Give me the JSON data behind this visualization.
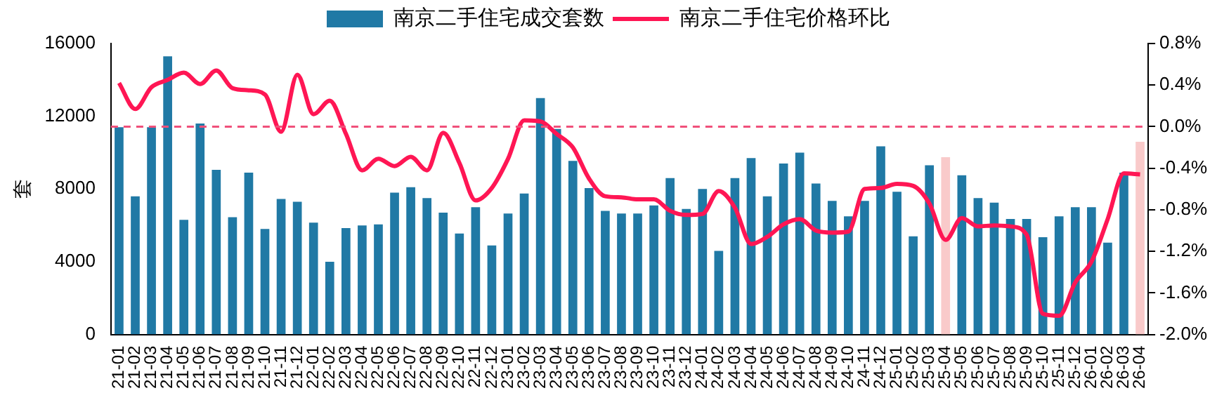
{
  "chart_data": {
    "type": "bar",
    "ylabel": "套",
    "categories": [
      "21-01",
      "21-02",
      "21-03",
      "21-04",
      "21-05",
      "21-06",
      "21-07",
      "21-08",
      "21-09",
      "21-10",
      "21-11",
      "21-12",
      "22-01",
      "22-02",
      "22-03",
      "22-04",
      "22-05",
      "22-06",
      "22-07",
      "22-08",
      "22-09",
      "22-10",
      "22-11",
      "22-12",
      "23-01",
      "23-02",
      "23-03",
      "23-04",
      "23-05",
      "23-06",
      "23-07",
      "23-08",
      "23-09",
      "23-10",
      "23-11",
      "23-12",
      "24-01",
      "24-02",
      "24-03",
      "24-04",
      "24-05",
      "24-06",
      "24-07",
      "24-08",
      "24-09",
      "24-10",
      "24-11",
      "24-12",
      "25-01",
      "25-02",
      "25-03",
      "25-04",
      "25-05",
      "25-06",
      "25-07",
      "25-08",
      "25-09",
      "25-10",
      "25-11",
      "25-12",
      "26-01",
      "26-02",
      "26-03",
      "26-04"
    ],
    "series": [
      {
        "name": "南京二手住宅成交套数",
        "color": "#2079a5",
        "colors": [
          "#2079a5",
          "#2079a5",
          "#2079a5",
          "#2079a5",
          "#2079a5",
          "#2079a5",
          "#2079a5",
          "#2079a5",
          "#2079a5",
          "#2079a5",
          "#2079a5",
          "#2079a5",
          "#2079a5",
          "#2079a5",
          "#2079a5",
          "#2079a5",
          "#2079a5",
          "#2079a5",
          "#2079a5",
          "#2079a5",
          "#2079a5",
          "#2079a5",
          "#2079a5",
          "#2079a5",
          "#2079a5",
          "#2079a5",
          "#2079a5",
          "#2079a5",
          "#2079a5",
          "#2079a5",
          "#2079a5",
          "#2079a5",
          "#2079a5",
          "#2079a5",
          "#2079a5",
          "#2079a5",
          "#2079a5",
          "#2079a5",
          "#2079a5",
          "#2079a5",
          "#2079a5",
          "#2079a5",
          "#2079a5",
          "#2079a5",
          "#2079a5",
          "#2079a5",
          "#2079a5",
          "#2079a5",
          "#2079a5",
          "#2079a5",
          "#2079a5",
          "#f9caca",
          "#2079a5",
          "#2079a5",
          "#2079a5",
          "#2079a5",
          "#2079a5",
          "#2079a5",
          "#2079a5",
          "#2079a5",
          "#2079a5",
          "#2079a5",
          "#2079a5",
          "#f9caca"
        ],
        "values": [
          11400,
          7600,
          11400,
          15300,
          6300,
          11600,
          9050,
          6450,
          8900,
          5800,
          7450,
          7300,
          6150,
          4000,
          5850,
          6000,
          6050,
          7800,
          8100,
          7500,
          6700,
          5550,
          7000,
          4900,
          6650,
          7750,
          13000,
          11300,
          9550,
          8050,
          6800,
          6650,
          6650,
          7100,
          8600,
          6900,
          8000,
          4600,
          8600,
          9700,
          7600,
          9400,
          10000,
          8300,
          7350,
          6500,
          7350,
          10350,
          7850,
          5400,
          9300,
          9750,
          8750,
          7500,
          7250,
          6350,
          6350,
          5350,
          6500,
          7000,
          7000,
          5050,
          8900,
          10600
        ]
      },
      {
        "name": "南京二手住宅价格环比",
        "type": "line",
        "axis": "y2",
        "color": "#ff1654",
        "values": [
          0.42,
          0.17,
          0.38,
          0.45,
          0.52,
          0.41,
          0.54,
          0.37,
          0.35,
          0.31,
          -0.05,
          0.5,
          0.12,
          0.25,
          -0.07,
          -0.42,
          -0.31,
          -0.38,
          -0.29,
          -0.42,
          -0.06,
          -0.35,
          -0.71,
          -0.59,
          -0.31,
          0.06,
          0.05,
          -0.07,
          -0.2,
          -0.5,
          -0.67,
          -0.68,
          -0.7,
          -0.7,
          -0.81,
          -0.85,
          -0.84,
          -0.62,
          -0.78,
          -1.13,
          -1.06,
          -0.94,
          -0.89,
          -1.0,
          -1.02,
          -1.01,
          -0.6,
          -0.59,
          -0.55,
          -0.57,
          -0.74,
          -1.09,
          -0.88,
          -0.96,
          -0.95,
          -0.96,
          -1.04,
          -1.8,
          -1.82,
          -1.5,
          -1.3,
          -0.89,
          -0.45,
          -0.46
        ]
      }
    ],
    "ylim": [
      0,
      16000
    ],
    "yticks": [
      0,
      4000,
      8000,
      12000,
      16000
    ],
    "y2lim": [
      -2.0,
      0.8
    ],
    "y2ticks": [
      {
        "value": -2.0,
        "label": "-2.0%"
      },
      {
        "value": -1.6,
        "label": "-1.6%"
      },
      {
        "value": -1.2,
        "label": "-1.2%"
      },
      {
        "value": -0.8,
        "label": "-0.8%"
      },
      {
        "value": -0.4,
        "label": "-0.4%"
      },
      {
        "value": 0,
        "label": "0.0%"
      },
      {
        "value": 0.4,
        "label": "0.4%"
      },
      {
        "value": 0.8,
        "label": "0.8%"
      }
    ],
    "ref_lines": [
      {
        "axis": "y2",
        "value": 0,
        "color": "#f0507a",
        "line_style": "dashed"
      }
    ],
    "grid": false,
    "legend": "top",
    "marker": "none"
  }
}
